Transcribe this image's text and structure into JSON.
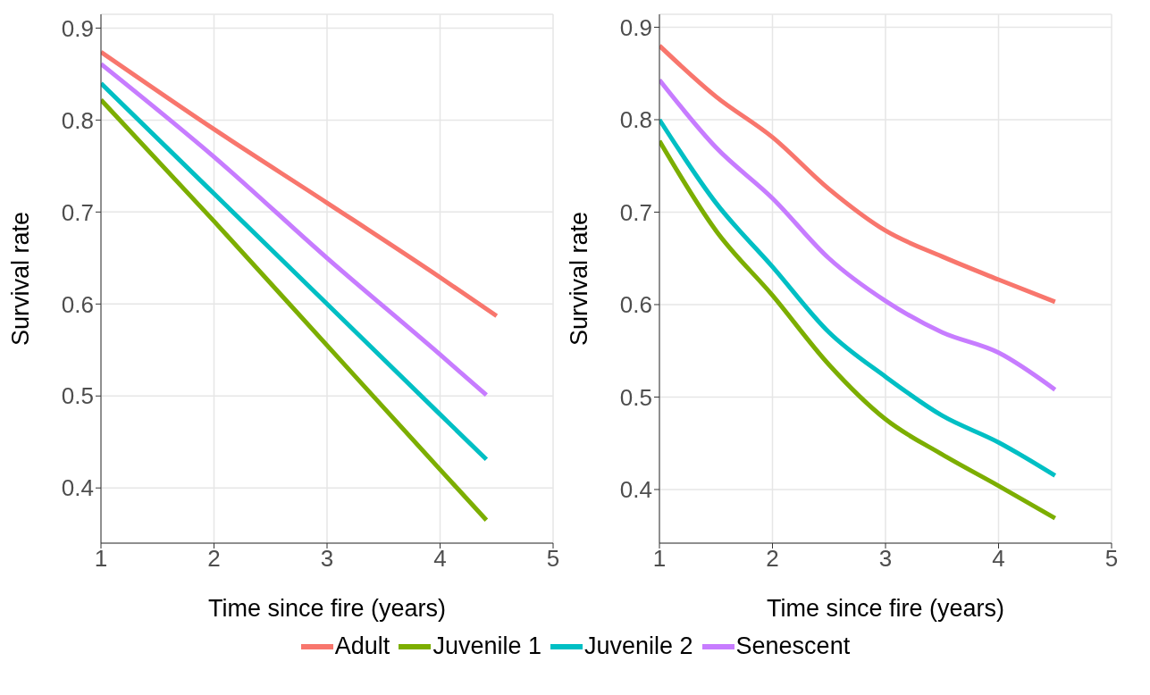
{
  "chart_data": [
    {
      "type": "line",
      "xlabel": "Time since fire (years)",
      "ylabel": "Survival rate",
      "x": [
        1,
        2,
        3,
        4,
        4.5
      ],
      "xlim": [
        1,
        5
      ],
      "xticks": [
        1,
        2,
        3,
        4,
        5
      ],
      "ylim": [
        0.34,
        0.915
      ],
      "yticks": [
        0.4,
        0.5,
        0.6,
        0.7,
        0.8,
        0.9
      ],
      "grid": true,
      "legend": "bottom",
      "marker": "none",
      "line_style": "solid",
      "series": [
        {
          "name": "Adult",
          "color": "#f8766d",
          "values": [
            0.874,
            0.79,
            0.71,
            0.629,
            0.587
          ]
        },
        {
          "name": "Juvenile 1",
          "color": "#7cae00",
          "x": [
            1,
            2,
            3,
            4,
            4.41
          ],
          "values": [
            0.822,
            0.69,
            0.555,
            0.42,
            0.365
          ]
        },
        {
          "name": "Juvenile 2",
          "color": "#00bfc4",
          "x": [
            1,
            2,
            3,
            4,
            4.41
          ],
          "values": [
            0.84,
            0.72,
            0.6,
            0.48,
            0.431
          ]
        },
        {
          "name": "Senescent",
          "color": "#c77cff",
          "x": [
            1,
            2,
            3,
            4,
            4.41
          ],
          "values": [
            0.861,
            0.76,
            0.65,
            0.545,
            0.501
          ]
        }
      ]
    },
    {
      "type": "line",
      "xlabel": "Time since fire (years)",
      "ylabel": "Survival rate",
      "x": [
        1,
        1.5,
        2,
        2.5,
        3,
        3.5,
        4,
        4.5
      ],
      "xlim": [
        1,
        5
      ],
      "xticks": [
        1,
        2,
        3,
        4,
        5
      ],
      "ylim": [
        0.342,
        0.914
      ],
      "yticks": [
        0.4,
        0.5,
        0.6,
        0.7,
        0.8,
        0.9
      ],
      "grid": true,
      "marker": "none",
      "line_style": "solid",
      "series": [
        {
          "color": "#f8766d",
          "values": [
            0.88,
            0.825,
            0.781,
            0.725,
            0.68,
            0.652,
            0.627,
            0.603
          ]
        },
        {
          "color": "#7cae00",
          "values": [
            0.777,
            0.68,
            0.61,
            0.535,
            0.476,
            0.438,
            0.404,
            0.369
          ]
        },
        {
          "color": "#00bfc4",
          "values": [
            0.8,
            0.71,
            0.641,
            0.57,
            0.522,
            0.48,
            0.451,
            0.415
          ]
        },
        {
          "color": "#c77cff",
          "values": [
            0.843,
            0.77,
            0.715,
            0.65,
            0.604,
            0.57,
            0.548,
            0.508
          ]
        }
      ]
    }
  ]
}
